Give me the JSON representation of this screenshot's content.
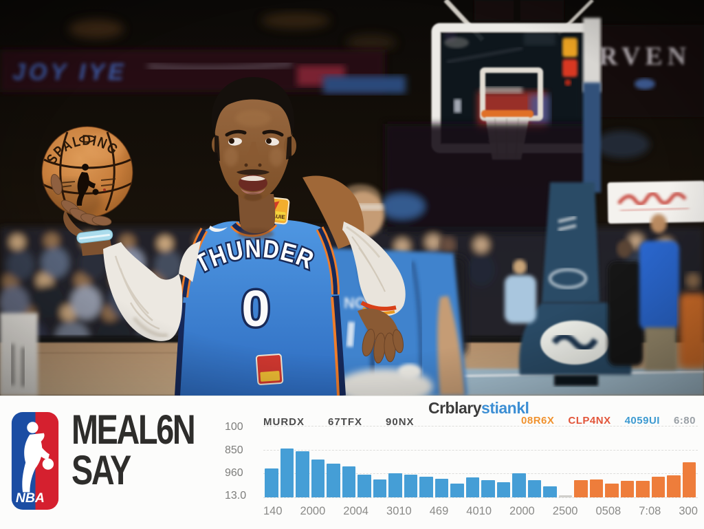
{
  "photo": {
    "jersey_team": "THUNDER",
    "jersey_number": "0",
    "jersey_patch_text": "TEAUIE",
    "ball_brand": "SPALDING",
    "arena_banner_right": "RVEN",
    "arena_banner_left": "JOY IYE",
    "player2_letters": "NO"
  },
  "banner": {
    "logo_text": "NBA",
    "title_line1": "MEAL6N",
    "title_line2": "SAY"
  },
  "chart_data": {
    "type": "bar",
    "title_part1": "Crblary",
    "title_part2": "stiankl",
    "y_ticks": [
      "100",
      "850",
      "960",
      "13.0"
    ],
    "x_ticks": [
      "140",
      "2000",
      "2004",
      "3010",
      "469",
      "4010",
      "2000",
      "2500",
      "0508",
      "7:08",
      "300"
    ],
    "annotations": [
      "MURDX",
      "67TFX",
      "90NX"
    ],
    "legend": [
      {
        "label": "08R6X",
        "color": "#f0922e"
      },
      {
        "label": "CLP4NX",
        "color": "#e2553a"
      },
      {
        "label": "4059UI",
        "color": "#3d9ad1"
      },
      {
        "label": "6:80",
        "color": "#9aa0a6"
      }
    ],
    "series": [
      {
        "name": "blue",
        "color": "#459ed6",
        "values": [
          42,
          71,
          67,
          55,
          49,
          45,
          33,
          26,
          35,
          33,
          30,
          27,
          20,
          29,
          25,
          22,
          35,
          25,
          16
        ]
      },
      {
        "name": "orange",
        "color": "#ee7d3b",
        "values": [
          25,
          26,
          20,
          24,
          24,
          30,
          32,
          51
        ]
      }
    ],
    "gap_slots": 1,
    "ylim": [
      0,
      110
    ],
    "grid": "dashed-horizontal",
    "legend_position": "top-right"
  },
  "colors": {
    "bar_blue": "#459ed6",
    "bar_orange": "#ee7d3b",
    "title_accent": "#3d8fd4",
    "nba_blue": "#1b4da3",
    "nba_red": "#d5202f",
    "jersey_blue": "#3f86d4"
  }
}
